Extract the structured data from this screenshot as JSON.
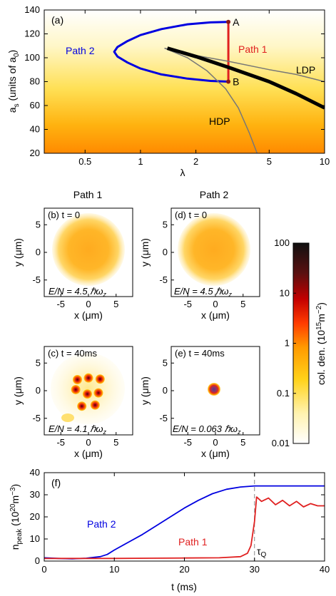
{
  "chart_data": [
    {
      "panel": "(a)",
      "type": "line",
      "xlabel": "λ",
      "ylabel": "a_s (units of a_0)",
      "xscale": "log",
      "xlim": [
        0.3,
        10
      ],
      "ylim": [
        20,
        140
      ],
      "xticks": [
        0.5,
        1,
        2,
        5,
        10
      ],
      "yticks": [
        20,
        40,
        60,
        80,
        100,
        120,
        140
      ],
      "points": [
        {
          "name": "A",
          "x": 3.0,
          "y": 130
        },
        {
          "name": "B",
          "x": 3.0,
          "y": 80
        }
      ],
      "series": [
        {
          "name": "Path 2",
          "color": "#0000e0",
          "x": [
            3.0,
            2.4,
            1.8,
            1.3,
            1.0,
            0.85,
            0.75,
            0.72,
            0.75,
            0.85,
            1.0,
            1.3,
            1.8,
            2.4,
            3.0
          ],
          "y": [
            130,
            129.6,
            128,
            124,
            119,
            114,
            109,
            105,
            101,
            96,
            91,
            86,
            82.5,
            80.6,
            80
          ]
        },
        {
          "name": "Path 1",
          "color": "#e02020",
          "x": [
            3.0,
            3.0
          ],
          "y": [
            130,
            80
          ]
        },
        {
          "name": "LDP",
          "color": "#777777",
          "x": [
            1.35,
            2,
            3,
            5,
            7,
            10
          ],
          "y": [
            108,
            102,
            97,
            90,
            86,
            80
          ]
        },
        {
          "name": "HDP",
          "color": "#777777",
          "x": [
            1.35,
            1.8,
            2.3,
            2.9,
            3.4,
            3.9,
            4.3
          ],
          "y": [
            108,
            100,
            89,
            74,
            58,
            37,
            20
          ]
        },
        {
          "name": "",
          "color": "#000000",
          "x": [
            1.4,
            2,
            3,
            5,
            7,
            10
          ],
          "y": [
            108,
            101,
            92,
            80,
            70,
            58
          ]
        }
      ]
    },
    {
      "panel": "density maps",
      "type": "heatmap",
      "column_titles": [
        "Path 1",
        "Path 2"
      ],
      "xlabel": "x (μm)",
      "ylabel": "y (μm)",
      "xticks": [
        -5,
        0,
        5
      ],
      "yticks": [
        -5,
        0,
        5
      ],
      "maps": [
        {
          "label": "(b) t = 0",
          "energy": "E/N = 4.5 ℏω_z",
          "pattern": "disk"
        },
        {
          "label": "(d) t = 0",
          "energy": "E/N = 4.5 ℏω_z",
          "pattern": "disk"
        },
        {
          "label": "(c) t = 40ms",
          "energy": "E/N = 4.1 ℏω_z",
          "pattern": "droplets"
        },
        {
          "label": "(e) t = 40ms",
          "energy": "E/N = 0.063 ℏω_z",
          "pattern": "single"
        }
      ],
      "colorbar": {
        "label": "col. den. (10^15 m^-2)",
        "scale": "log",
        "ticks": [
          "100",
          "10",
          "1",
          "0.1",
          "0.01"
        ],
        "colors": [
          "#fffbe8",
          "#ffe680",
          "#ffb000",
          "#ff5a00",
          "#e01010",
          "#8a0000",
          "#3a0000",
          "#101010"
        ]
      }
    },
    {
      "panel": "(f)",
      "type": "line",
      "xlabel": "t (ms)",
      "ylabel": "n_peak (10^20 m^-3)",
      "xlim": [
        0,
        40
      ],
      "ylim": [
        0,
        40
      ],
      "xticks": [
        0,
        10,
        20,
        30,
        40
      ],
      "yticks": [
        0,
        10,
        20,
        30,
        40
      ],
      "tau_label": "τ_Q",
      "tau_x": 30,
      "series": [
        {
          "name": "Path 2",
          "color": "#0000e0",
          "x": [
            0,
            2,
            4,
            6,
            8,
            9,
            10,
            12,
            14,
            16,
            18,
            20,
            22,
            24,
            26,
            28,
            30,
            32,
            34,
            36,
            38,
            40
          ],
          "y": [
            1.5,
            1.2,
            1.0,
            1.3,
            2.0,
            3.0,
            5.0,
            8.5,
            12,
            16,
            20,
            24,
            27.5,
            30.5,
            32.5,
            33.5,
            34,
            34,
            34,
            34,
            34,
            34
          ]
        },
        {
          "name": "Path 1",
          "color": "#e02020",
          "x": [
            0,
            5,
            10,
            15,
            20,
            25,
            28,
            29,
            29.5,
            30,
            30.3,
            31,
            32,
            33,
            34,
            35,
            36,
            37,
            38,
            39,
            40
          ],
          "y": [
            1.2,
            1.2,
            1.2,
            1.3,
            1.4,
            1.5,
            2.0,
            3.5,
            7,
            18,
            29,
            27,
            28.5,
            25.5,
            27.5,
            25,
            27,
            24.5,
            26,
            25,
            25
          ]
        }
      ]
    }
  ],
  "panel_a": {
    "label": "(a)",
    "xlabel": "λ",
    "ylabel": "a",
    "ylabel_sub": "s",
    "ylabel_rest": " (units of a",
    "ylabel_sub0": "0",
    "ylabel_end": ")",
    "point_a": "A",
    "point_b": "B",
    "path1": "Path 1",
    "path2": "Path 2",
    "ldp": "LDP",
    "hdp": "HDP"
  },
  "maps_text": {
    "col1": "Path 1",
    "col2": "Path 2",
    "b_label": "(b) t = 0",
    "d_label": "(d) t = 0",
    "c_label": "(c) t = 40ms",
    "e_label": "(e) t = 40ms",
    "energy_b": "E/N = 4.5 ℏω",
    "energy_d": "E/N = 4.5 ℏω",
    "energy_c": "E/N = 4.1 ℏω",
    "energy_e": "E/N = 0.063 ℏω",
    "energy_sub": "z",
    "xlabel": "x (μm)",
    "ylabel": "y (μm)",
    "cb_label": "col. den. (10",
    "cb_sup": "15",
    "cb_mid": "m",
    "cb_sup2": "−2",
    "cb_end": ")"
  },
  "panel_f": {
    "label": "(f)",
    "xlabel": "t (ms)",
    "ylabel_main": "n",
    "ylabel_sub": "peak",
    "ylabel_rest": " (10",
    "ylabel_sup": "20",
    "ylabel_m": "m",
    "ylabel_sup2": "−3",
    "ylabel_end": ")",
    "path1": "Path 1",
    "path2": "Path 2",
    "tau": "τ",
    "tau_sub": "Q"
  }
}
